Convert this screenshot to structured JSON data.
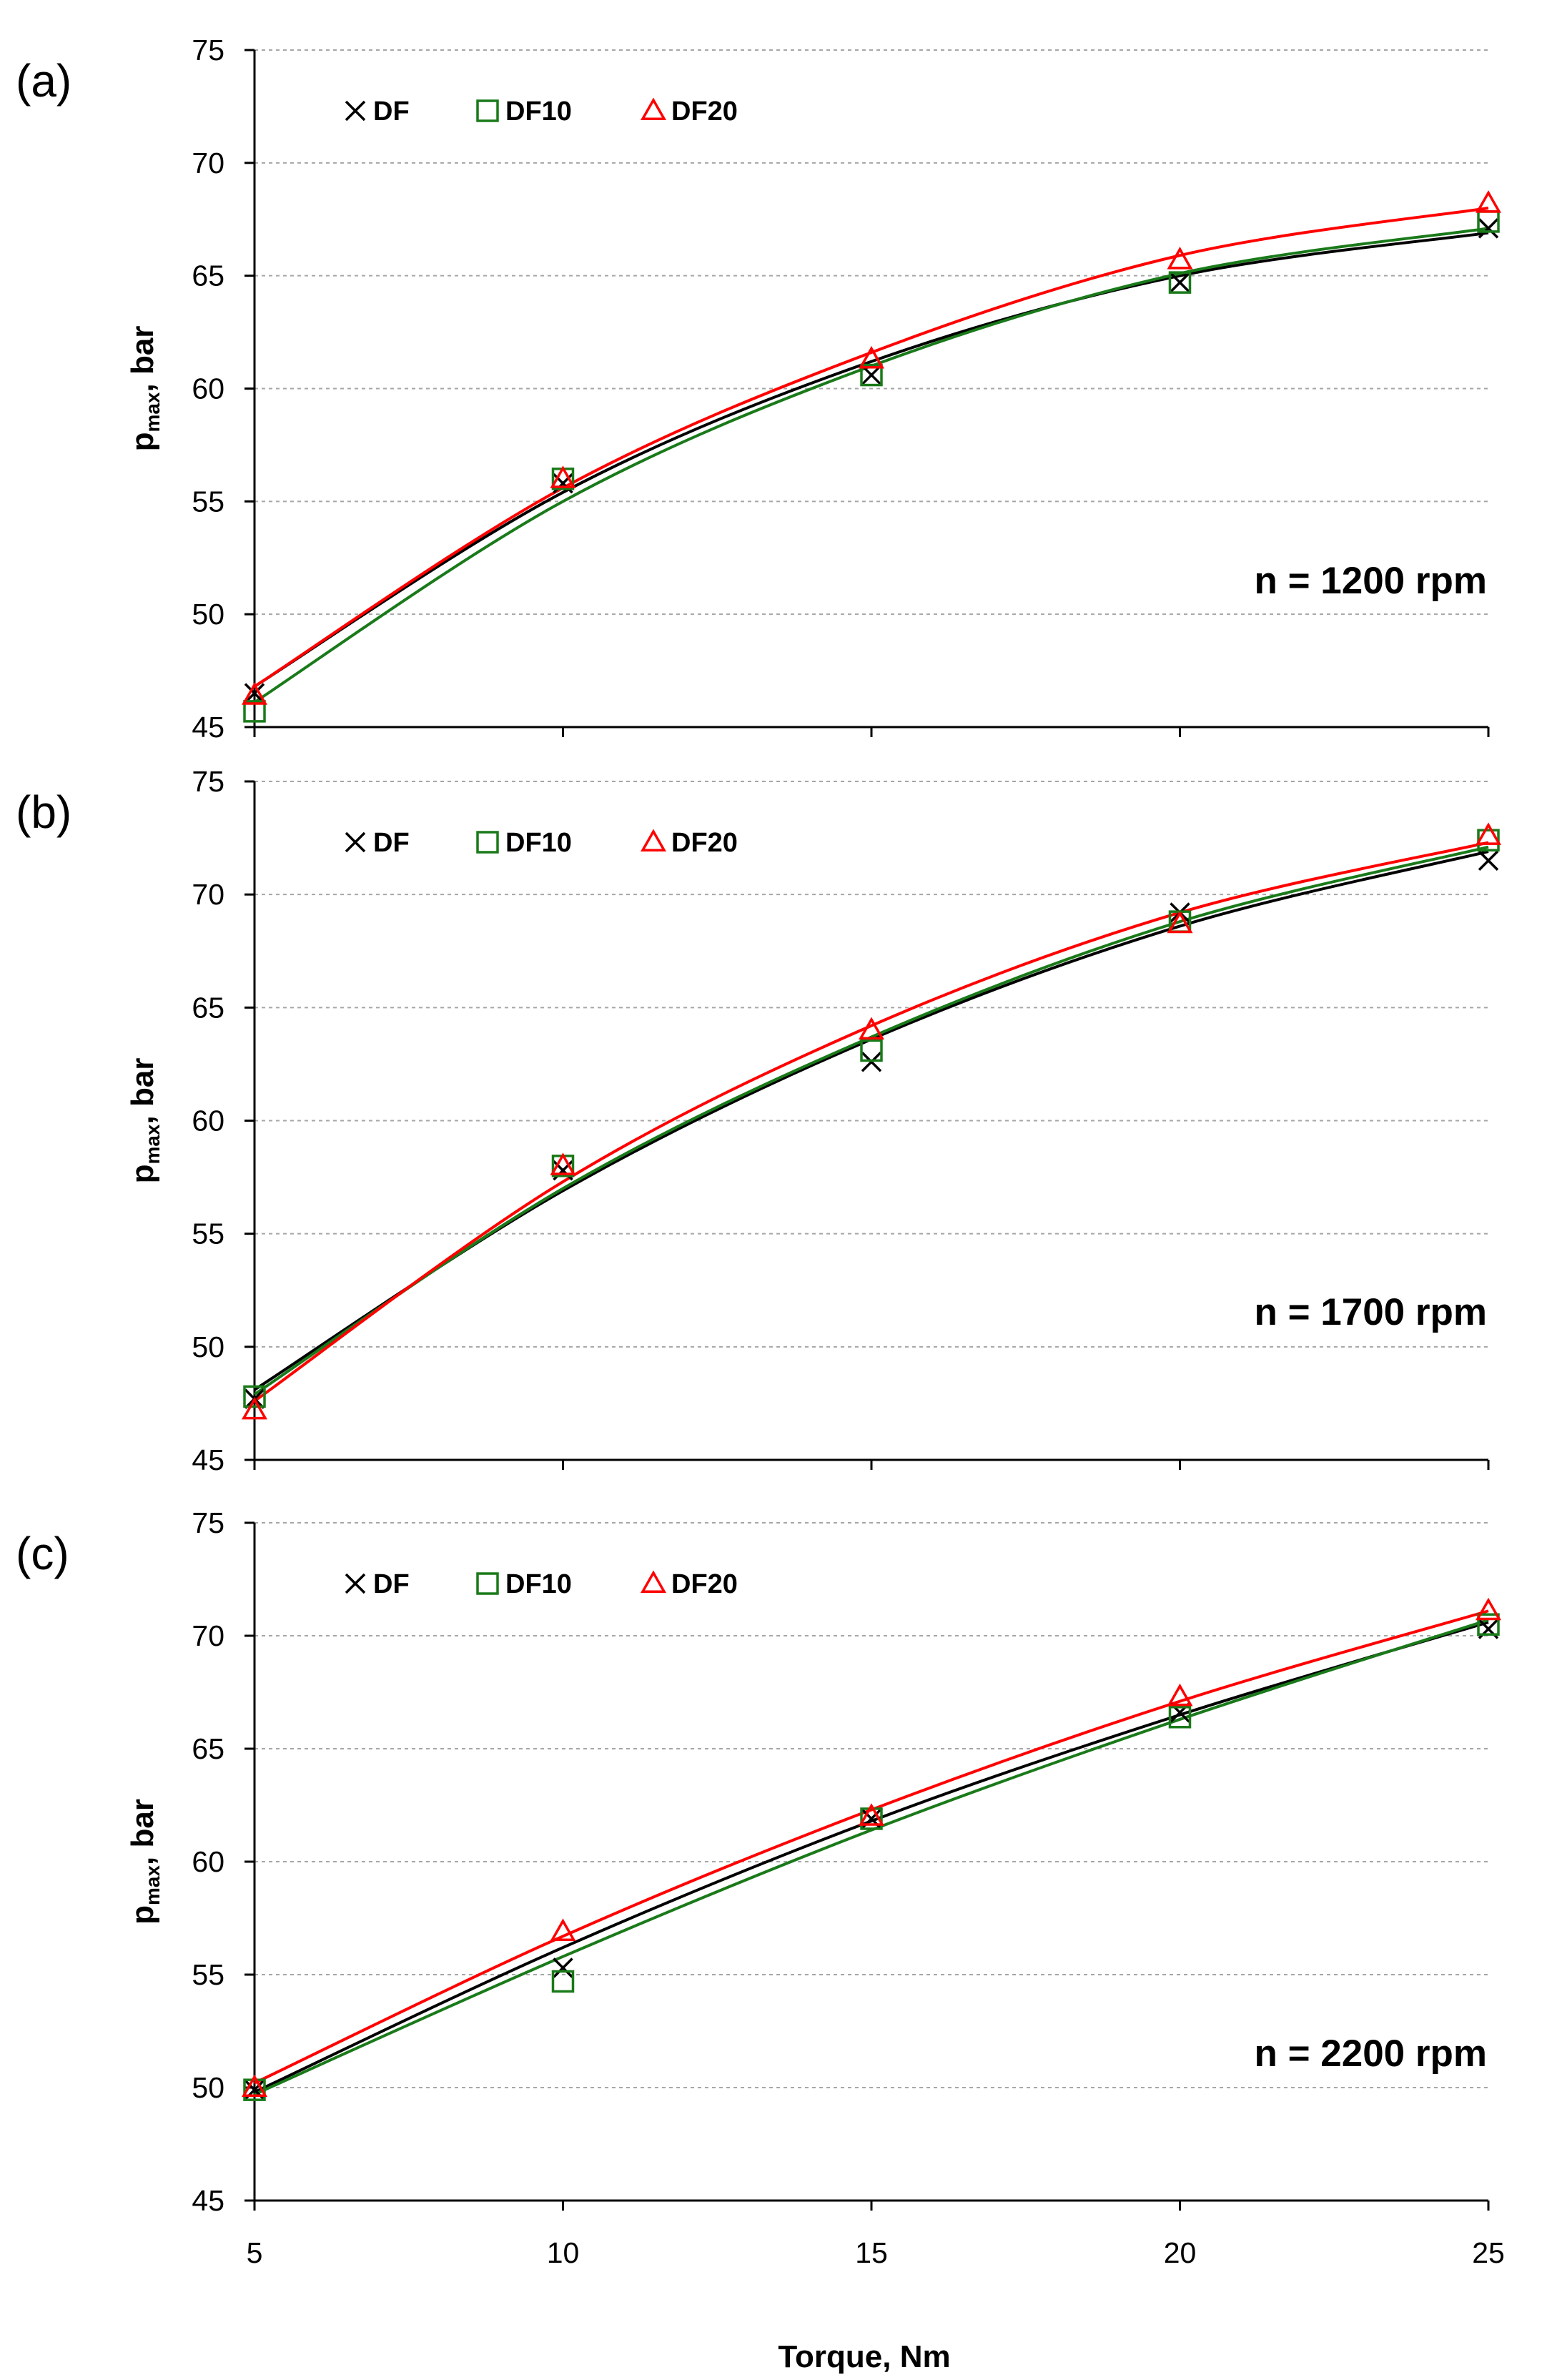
{
  "figure": {
    "x_axis_title": "Torque, Nm",
    "x_ticks": [
      "5",
      "10",
      "15",
      "20",
      "25"
    ]
  },
  "series_style": [
    {
      "name": "DF",
      "marker": "x-mark",
      "color": "#000000"
    },
    {
      "name": "DF10",
      "marker": "square",
      "color": "#1a7a1a"
    },
    {
      "name": "DF20",
      "marker": "triangle",
      "color": "#ff0000"
    }
  ],
  "chart_data": [
    {
      "type": "scatter",
      "panel_label": "(a)",
      "speed_label": "n = 1200 rpm",
      "ylabel_main": "p",
      "ylabel_sub": "max",
      "ylabel_rest": ", bar",
      "xlim": [
        5,
        25
      ],
      "ylim": [
        45,
        75
      ],
      "y_ticks": [
        "45",
        "50",
        "55",
        "60",
        "65",
        "70",
        "75"
      ],
      "grid": true,
      "legend_position": "top-left",
      "x": [
        5,
        10,
        15,
        20,
        25
      ],
      "series": [
        {
          "name": "DF",
          "values": [
            46.5,
            55.8,
            60.6,
            64.7,
            67.1
          ],
          "trend": [
            46.8,
            55.4,
            61.2,
            65.0,
            66.9
          ]
        },
        {
          "name": "DF10",
          "values": [
            45.7,
            56.0,
            60.6,
            64.7,
            67.4
          ],
          "trend": [
            46.1,
            55.0,
            61.0,
            65.1,
            67.1
          ]
        },
        {
          "name": "DF20",
          "values": [
            46.4,
            56.0,
            61.3,
            65.7,
            68.2
          ],
          "trend": [
            46.8,
            55.6,
            61.6,
            65.9,
            68.0
          ]
        }
      ]
    },
    {
      "type": "scatter",
      "panel_label": "(b)",
      "speed_label": "n = 1700 rpm",
      "ylabel_main": "p",
      "ylabel_sub": "max",
      "ylabel_rest": ", bar",
      "xlim": [
        5,
        25
      ],
      "ylim": [
        45,
        75
      ],
      "y_ticks": [
        "45",
        "50",
        "55",
        "60",
        "65",
        "70",
        "75"
      ],
      "grid": true,
      "legend_position": "top-left",
      "x": [
        5,
        10,
        15,
        20,
        25
      ],
      "series": [
        {
          "name": "DF",
          "values": [
            47.7,
            57.8,
            62.6,
            69.2,
            71.5
          ],
          "trend": [
            48.1,
            56.9,
            63.6,
            68.6,
            71.9
          ]
        },
        {
          "name": "DF10",
          "values": [
            47.8,
            58.0,
            63.1,
            68.8,
            72.4
          ],
          "trend": [
            47.9,
            57.0,
            63.7,
            68.8,
            72.1
          ]
        },
        {
          "name": "DF20",
          "values": [
            47.2,
            58.0,
            64.0,
            68.7,
            72.6
          ],
          "trend": [
            47.6,
            57.3,
            64.2,
            69.2,
            72.3
          ]
        }
      ]
    },
    {
      "type": "scatter",
      "panel_label": "(c)",
      "speed_label": "n = 2200 rpm",
      "xlabel": "Torque, Nm",
      "ylabel_main": "p",
      "ylabel_sub": "max",
      "ylabel_rest": ", bar",
      "xlim": [
        5,
        25
      ],
      "ylim": [
        45,
        75
      ],
      "y_ticks": [
        "45",
        "50",
        "55",
        "60",
        "65",
        "70",
        "75"
      ],
      "grid": true,
      "legend_position": "top-left",
      "x": [
        5,
        10,
        15,
        20,
        25
      ],
      "series": [
        {
          "name": "DF",
          "values": [
            49.9,
            55.3,
            61.9,
            66.6,
            70.3
          ],
          "trend": [
            49.8,
            56.2,
            61.8,
            66.5,
            70.6
          ]
        },
        {
          "name": "DF10",
          "values": [
            49.9,
            54.7,
            61.9,
            66.4,
            70.5
          ],
          "trend": [
            49.7,
            55.8,
            61.4,
            66.3,
            70.7
          ]
        },
        {
          "name": "DF20",
          "values": [
            50.0,
            56.9,
            62.0,
            67.3,
            71.1
          ],
          "trend": [
            50.2,
            56.7,
            62.3,
            67.1,
            71.1
          ]
        }
      ]
    }
  ]
}
